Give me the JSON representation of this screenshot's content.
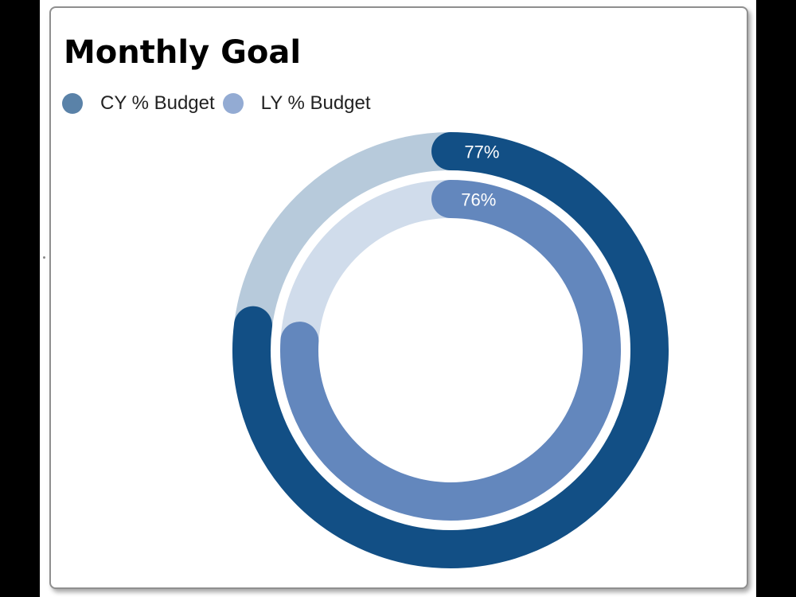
{
  "card": {
    "title": "Monthly Goal"
  },
  "chart_data": {
    "type": "radial-bar",
    "title": "Monthly Goal",
    "series": [
      {
        "name": "CY % Budget",
        "value": 77,
        "label": "77%",
        "color": "#124f85",
        "track_color": "#b7cadb",
        "legend_color": "#5a82a8"
      },
      {
        "name": "LY % Budget",
        "value": 76,
        "label": "76%",
        "color": "#6387bd",
        "track_color": "#d0dceb",
        "legend_color": "#93abd3"
      }
    ],
    "max": 100,
    "legend": "top-left"
  }
}
